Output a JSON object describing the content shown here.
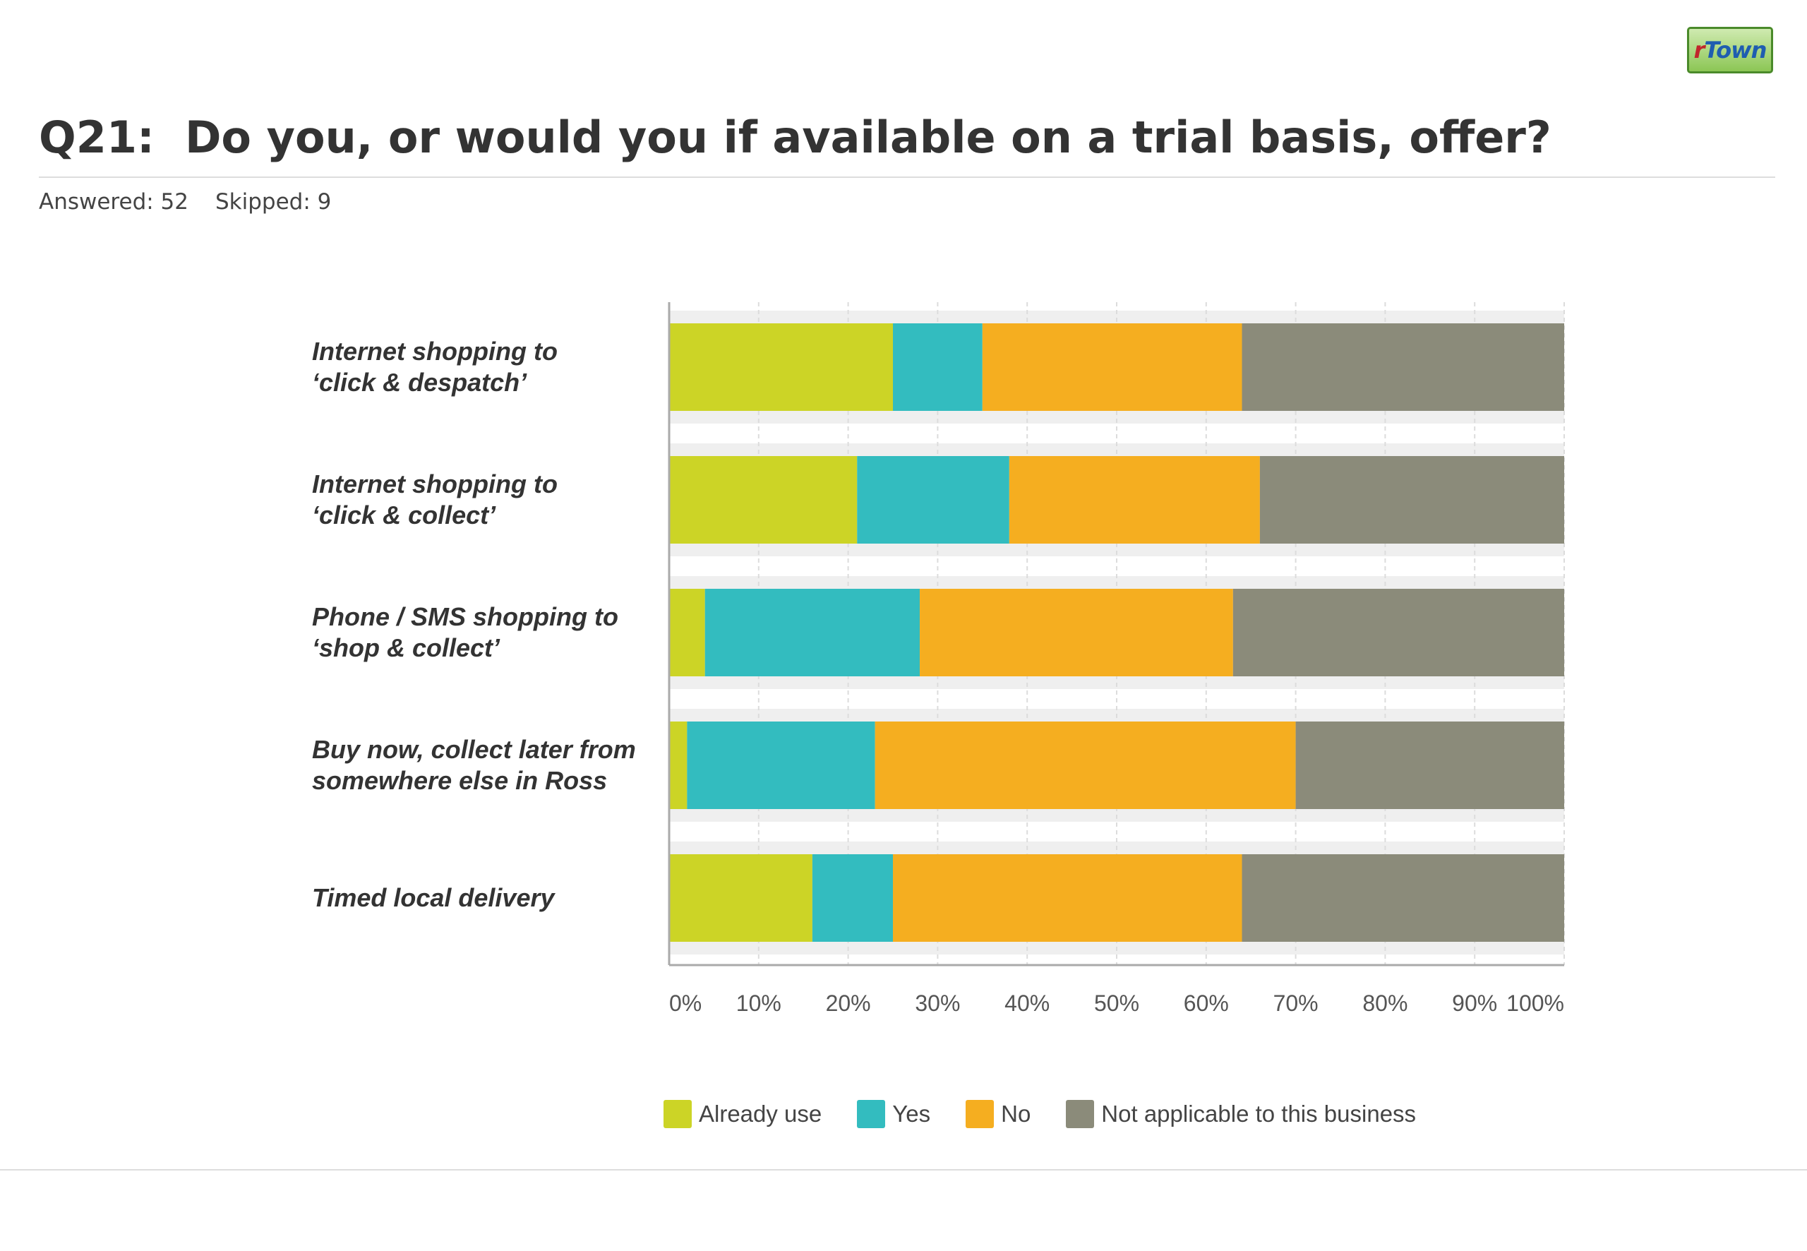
{
  "logo": {
    "text_prefix": "r",
    "text_rest": "Town"
  },
  "title": "Q21:  Do you, or would you if available on a trial basis, offer?",
  "answered": "Answered: 52",
  "skipped": "Skipped: 9",
  "chart_data": {
    "type": "bar",
    "orientation": "horizontal",
    "stacked": true,
    "categories": [
      [
        "Internet shopping to",
        "‘click & despatch’"
      ],
      [
        "Internet shopping to",
        "‘click & collect’"
      ],
      [
        "Phone / SMS shopping to",
        "‘shop & collect’"
      ],
      [
        "Buy now, collect later from",
        "somewhere else in Ross"
      ],
      [
        "Timed local delivery"
      ]
    ],
    "series": [
      {
        "name": "Already use",
        "color": "#ccd426",
        "values": [
          25,
          21,
          4,
          2,
          16
        ]
      },
      {
        "name": "Yes",
        "color": "#33bcbf",
        "values": [
          10,
          17,
          24,
          21,
          9
        ]
      },
      {
        "name": "No",
        "color": "#f5ae20",
        "values": [
          29,
          28,
          35,
          47,
          39
        ]
      },
      {
        "name": "Not applicable to this business",
        "color": "#8b8b7a",
        "values": [
          36,
          34,
          37,
          30,
          36
        ]
      }
    ],
    "x_ticks": [
      "0%",
      "10%",
      "20%",
      "30%",
      "40%",
      "50%",
      "60%",
      "70%",
      "80%",
      "90%",
      "100%"
    ],
    "xlim": [
      0,
      100
    ],
    "grid": true,
    "legend_position": "bottom"
  }
}
